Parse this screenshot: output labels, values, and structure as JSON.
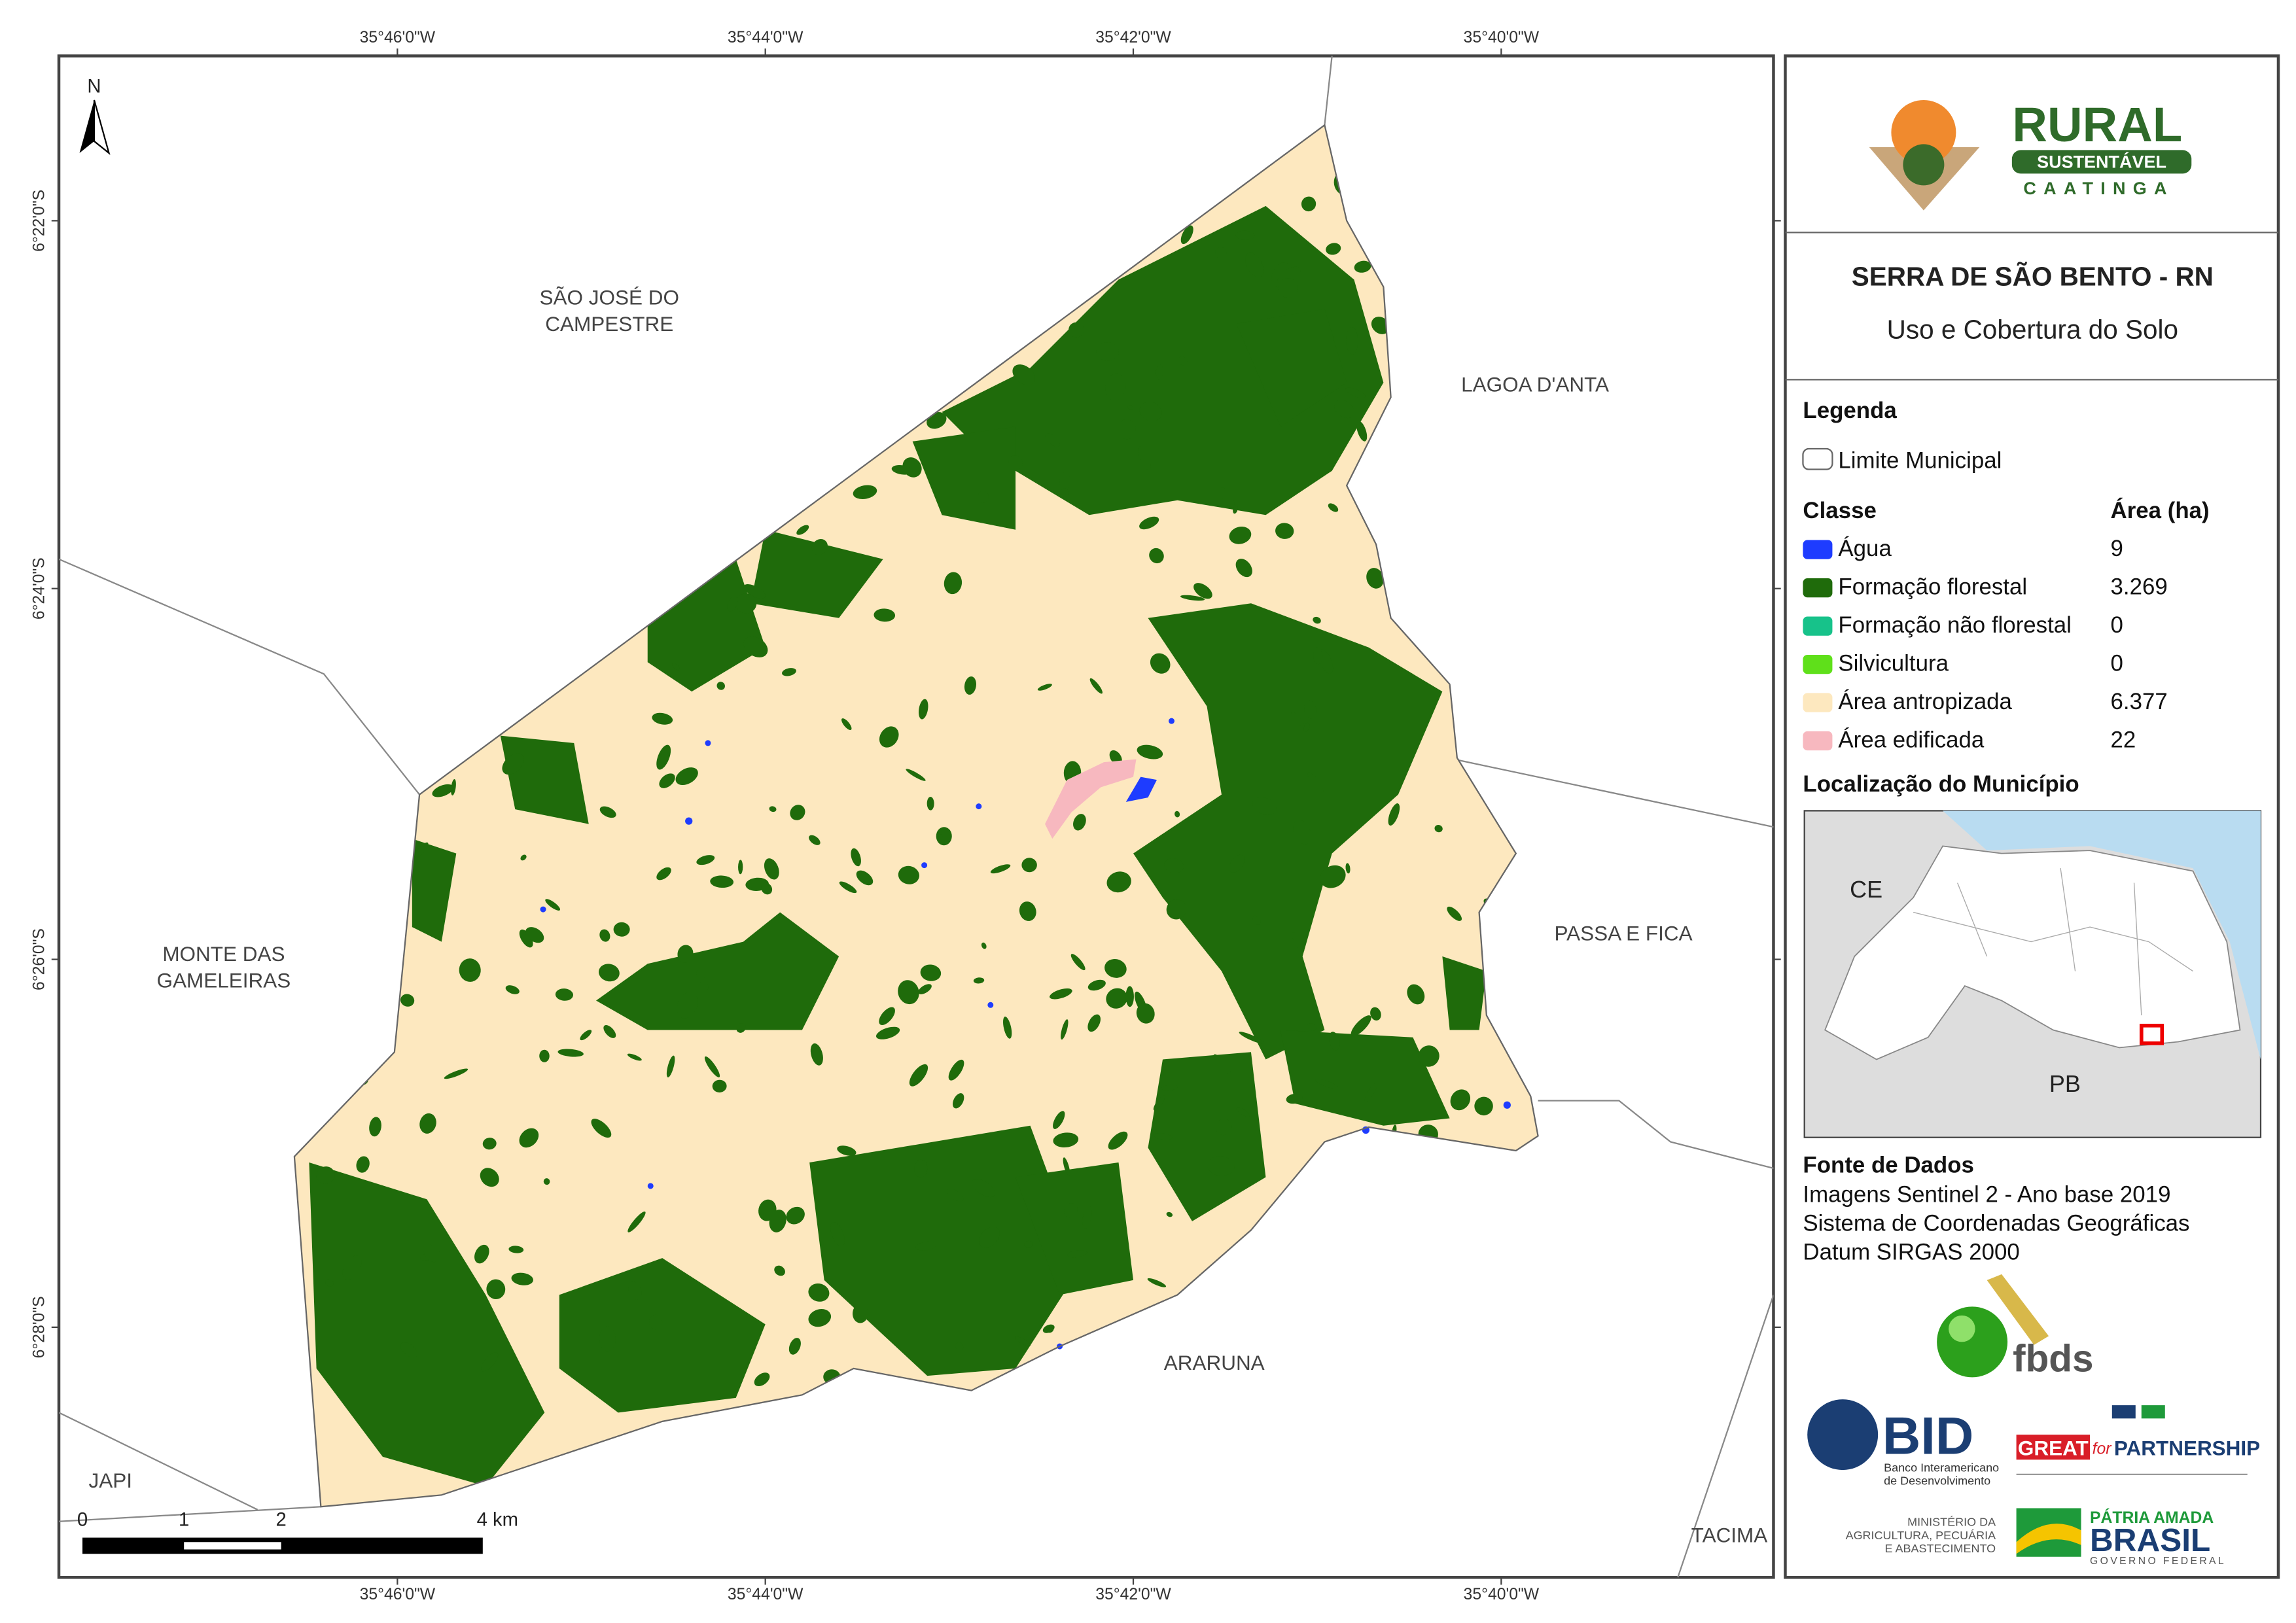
{
  "map": {
    "north": "N",
    "x_labels": [
      "35°46'0\"W",
      "35°44'0\"W",
      "35°42'0\"W",
      "35°40'0\"W"
    ],
    "y_labels": [
      "6°22'0\"S",
      "6°24'0\"S",
      "6°26'0\"S",
      "6°28'0\"S"
    ],
    "places": [
      [
        "SÃO JOSÉ DO",
        "CAMPESTRE"
      ],
      [
        "LAGOA D'ANTA"
      ],
      [
        "MONTE DAS",
        "GAMELEIRAS"
      ],
      [
        "PASSA E FICA"
      ],
      [
        "ARARUNA"
      ],
      [
        "JAPI"
      ],
      [
        "TACIMA"
      ]
    ],
    "scale_labels": [
      "0",
      "1",
      "2",
      "4 km"
    ]
  },
  "header": {
    "logo": {
      "rural": "RURAL",
      "sustentavel": "SUSTENTÁVEL",
      "caatinga": "CAATINGA"
    },
    "title": "SERRA DE SÃO BENTO - RN",
    "subtitle": "Uso e Cobertura do Solo"
  },
  "legend": {
    "heading": "Legenda",
    "boundary": "Limite Municipal",
    "class_header": "Classe",
    "area_header": "Área (ha)",
    "classes": [
      {
        "name": "Água",
        "color": "#1e3cff",
        "area": "9"
      },
      {
        "name": "Formação florestal",
        "color": "#1f6b0b",
        "area": "3.269"
      },
      {
        "name": "Formação não florestal",
        "color": "#17c28a",
        "area": "0"
      },
      {
        "name": "Silvicultura",
        "color": "#5fe01a",
        "area": "0"
      },
      {
        "name": "Área antropizada",
        "color": "#fde8bf",
        "area": "6.377"
      },
      {
        "name": "Área edificada",
        "color": "#f7b8bf",
        "area": "22"
      }
    ],
    "location_heading": "Localização do Município",
    "inset_labels": [
      "CE",
      "PB"
    ]
  },
  "source": {
    "heading": "Fonte de Dados",
    "lines": [
      "Imagens Sentinel 2 - Ano base 2019",
      "Sistema de Coordenadas Geográficas",
      "Datum SIRGAS 2000"
    ]
  },
  "logos": {
    "fbds": "fbds",
    "bid": "BID",
    "bid_sub": [
      "Banco Interamericano",
      "de Desenvolvimento"
    ],
    "great": "GREAT",
    "great_for": "for",
    "partnership": "PARTNERSHIP",
    "ministry": [
      "MINISTÉRIO DA",
      "AGRICULTURA, PECUÁRIA",
      "E ABASTECIMENTO"
    ],
    "patria": "PÁTRIA AMADA",
    "brasil": "BRASIL",
    "governo": "GOVERNO FEDERAL"
  }
}
